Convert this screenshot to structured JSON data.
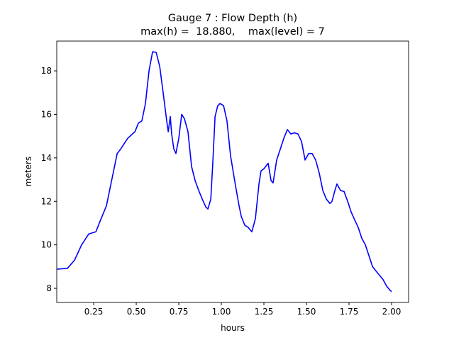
{
  "chart_data": {
    "type": "line",
    "title": "Gauge 7 : Flow Depth (h)",
    "subtitle": "max(h) =  18.880,    max(level) = 7",
    "x_label": "hours",
    "y_label": "meters",
    "xlim": [
      0.033,
      2.1
    ],
    "ylim": [
      7.35,
      19.37
    ],
    "xticks": [
      0.25,
      {
        "value": 0.5,
        "label": "0.50"
      },
      0.75,
      {
        "value": 1,
        "label": "1.00"
      },
      1.25,
      {
        "value": 1.5,
        "label": "1.50"
      },
      1.75,
      {
        "value": 2,
        "label": "2.00"
      }
    ],
    "yticks": [
      8,
      10,
      12,
      14,
      16,
      18
    ],
    "grid": false,
    "series": [
      {
        "color": "#0000ff",
        "x": [
          0.033,
          0.096,
          0.138,
          0.179,
          0.221,
          0.263,
          0.283,
          0.325,
          0.346,
          0.367,
          0.388,
          0.408,
          0.45,
          0.492,
          0.513,
          0.533,
          0.554,
          0.575,
          0.596,
          0.617,
          0.638,
          0.658,
          0.679,
          0.688,
          0.7,
          0.708,
          0.721,
          0.733,
          0.75,
          0.767,
          0.783,
          0.804,
          0.825,
          0.846,
          0.867,
          0.888,
          0.908,
          0.921,
          0.938,
          0.95,
          0.963,
          0.979,
          0.992,
          1.013,
          1.033,
          1.054,
          1.075,
          1.088,
          1.104,
          1.117,
          1.138,
          1.158,
          1.179,
          1.2,
          1.221,
          1.233,
          1.25,
          1.275,
          1.292,
          1.304,
          1.325,
          1.346,
          1.367,
          1.388,
          1.408,
          1.429,
          1.45,
          1.471,
          1.492,
          1.513,
          1.533,
          1.554,
          1.575,
          1.596,
          1.617,
          1.638,
          1.65,
          1.667,
          1.679,
          1.7,
          1.721,
          1.742,
          1.763,
          1.783,
          1.804,
          1.825,
          1.846,
          1.867,
          1.888,
          1.908,
          1.929,
          1.95,
          1.971,
          1.992,
          2.0
        ],
        "values": [
          8.88,
          8.92,
          9.3,
          10.0,
          10.5,
          10.6,
          11.0,
          11.8,
          12.6,
          13.4,
          14.2,
          14.4,
          14.9,
          15.2,
          15.6,
          15.7,
          16.5,
          18.0,
          18.88,
          18.85,
          18.2,
          17.0,
          15.7,
          15.2,
          15.9,
          15.1,
          14.4,
          14.2,
          14.9,
          16.0,
          15.8,
          15.2,
          13.6,
          12.95,
          12.5,
          12.1,
          11.75,
          11.65,
          12.1,
          13.8,
          15.9,
          16.4,
          16.5,
          16.4,
          15.7,
          14.1,
          13.1,
          12.5,
          11.8,
          11.3,
          10.9,
          10.8,
          10.6,
          11.2,
          12.8,
          13.4,
          13.5,
          13.75,
          12.95,
          12.85,
          13.9,
          14.4,
          14.9,
          15.3,
          15.1,
          15.15,
          15.1,
          14.75,
          13.9,
          14.2,
          14.2,
          13.9,
          13.3,
          12.5,
          12.1,
          11.9,
          12.0,
          12.5,
          12.8,
          12.5,
          12.45,
          12.0,
          11.5,
          11.15,
          10.8,
          10.3,
          10.0,
          9.5,
          9.0,
          8.8,
          8.6,
          8.4,
          8.1,
          7.9,
          7.85
        ]
      }
    ]
  }
}
